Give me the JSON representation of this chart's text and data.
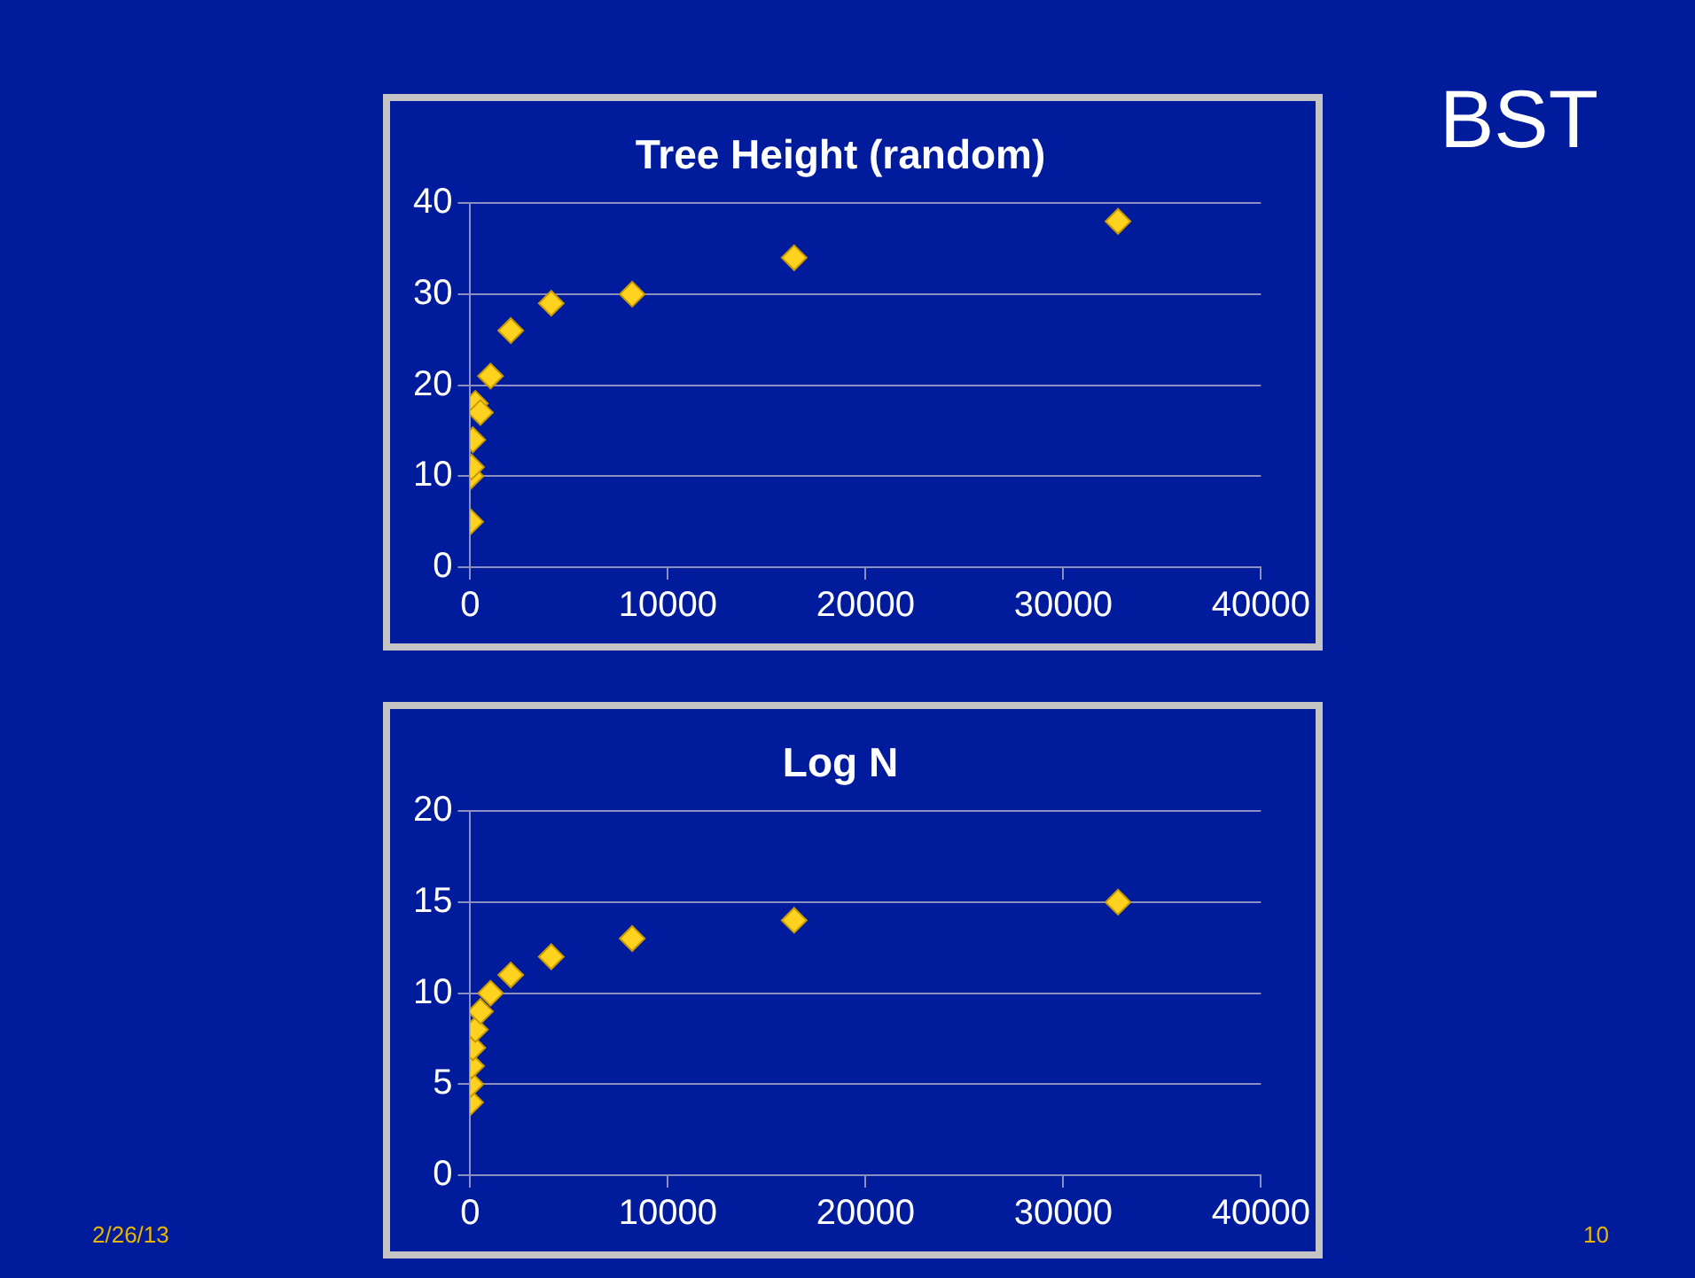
{
  "chart_data": [
    {
      "type": "scatter",
      "title": "Tree Height (random)",
      "x": [
        16,
        32,
        64,
        128,
        256,
        512,
        1024,
        2048,
        4096,
        8192,
        16384,
        32768
      ],
      "series": [
        {
          "color": "#ffd21f",
          "values": [
            5,
            10,
            11,
            14,
            18,
            17,
            21,
            26,
            29,
            30,
            34,
            38
          ]
        }
      ],
      "xlim": [
        0,
        40000
      ],
      "xticks": [
        0,
        10000,
        20000,
        30000,
        40000
      ],
      "ylim": [
        0,
        40
      ],
      "yticks": [
        0,
        10,
        20,
        30,
        40
      ],
      "grid": "y",
      "marker": "diamond",
      "legend": false,
      "annotations": [
        "BST"
      ]
    },
    {
      "type": "scatter",
      "title": "Log N",
      "x": [
        16,
        32,
        64,
        128,
        256,
        512,
        1024,
        2048,
        4096,
        8192,
        16384,
        32768
      ],
      "series": [
        {
          "color": "#ffd21f",
          "values": [
            4,
            5,
            6,
            7,
            8,
            9,
            10,
            11,
            12,
            13,
            14,
            15
          ]
        }
      ],
      "xlim": [
        0,
        40000
      ],
      "xticks": [
        0,
        10000,
        20000,
        30000,
        40000
      ],
      "ylim": [
        0,
        20
      ],
      "yticks": [
        0,
        5,
        10,
        15,
        20
      ],
      "grid": "y",
      "marker": "diamond",
      "legend": false,
      "annotations": [
        "2/26/13",
        "10"
      ]
    }
  ]
}
